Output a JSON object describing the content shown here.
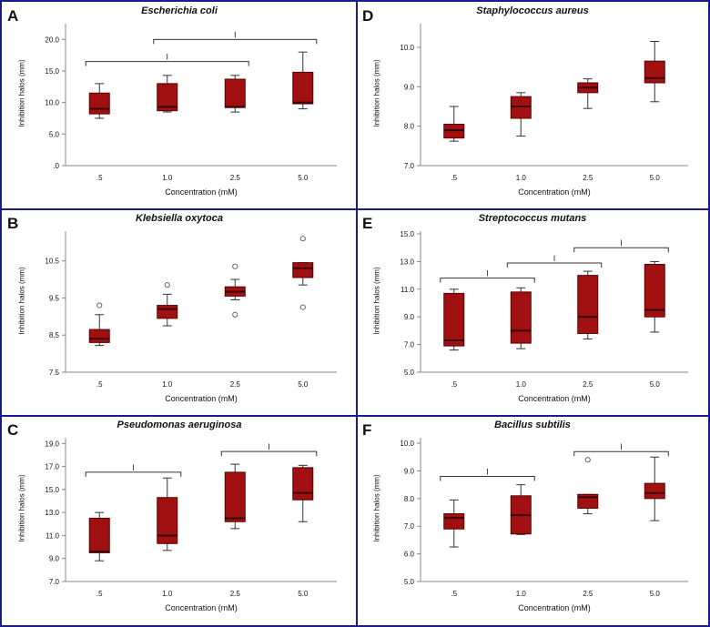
{
  "chart_data": [
    {
      "id": "A",
      "type": "box",
      "panel_letter": "A",
      "title": "Escherichia coli",
      "xlabel": "Concentration (mM)",
      "ylabel": "Inhibition halos (mm)",
      "categories": [
        ".5",
        "1.0",
        "2.5",
        "5.0"
      ],
      "ylim": [
        0,
        22.5
      ],
      "yticks": [
        0,
        5,
        10,
        15,
        20
      ],
      "yticklabels": [
        ".0",
        "5.0",
        "10.0",
        "15.0",
        "20.0"
      ],
      "boxes": [
        {
          "min": 7.5,
          "q1": 8.2,
          "median": 9.0,
          "q3": 11.5,
          "max": 13.0
        },
        {
          "min": 8.5,
          "q1": 8.7,
          "median": 9.3,
          "q3": 13.0,
          "max": 14.3
        },
        {
          "min": 8.5,
          "q1": 9.2,
          "median": 9.3,
          "q3": 13.7,
          "max": 14.3
        },
        {
          "min": 9.0,
          "q1": 9.8,
          "median": 10.0,
          "q3": 14.8,
          "max": 18.0
        }
      ],
      "outliers": [],
      "brackets": [
        {
          "from": 0,
          "to": 2,
          "y": 16.5,
          "label": "l"
        },
        {
          "from": 1,
          "to": 3,
          "y": 20.0,
          "label": "l"
        }
      ]
    },
    {
      "id": "D",
      "type": "box",
      "panel_letter": "D",
      "title": "Staphylococcus aureus",
      "xlabel": "Concentration (mM)",
      "ylabel": "Inhibition halos (mm)",
      "categories": [
        ".5",
        "1.0",
        "2.5",
        "5.0"
      ],
      "ylim": [
        7.0,
        10.6
      ],
      "yticks": [
        7,
        8,
        9,
        10
      ],
      "yticklabels": [
        "7.0",
        "8.0",
        "9.0",
        "10.0"
      ],
      "boxes": [
        {
          "min": 7.62,
          "q1": 7.7,
          "median": 7.9,
          "q3": 8.05,
          "max": 8.5
        },
        {
          "min": 7.75,
          "q1": 8.2,
          "median": 8.5,
          "q3": 8.75,
          "max": 8.85
        },
        {
          "min": 8.45,
          "q1": 8.85,
          "median": 8.98,
          "q3": 9.1,
          "max": 9.2
        },
        {
          "min": 8.62,
          "q1": 9.1,
          "median": 9.22,
          "q3": 9.65,
          "max": 10.15
        }
      ],
      "outliers": [],
      "brackets": []
    },
    {
      "id": "B",
      "type": "box",
      "panel_letter": "B",
      "title": "Klebsiella oxytoca",
      "xlabel": "Concentration (mM)",
      "ylabel": "Inhibition halos (mm)",
      "categories": [
        ".5",
        "1.0",
        "2.5",
        "5.0"
      ],
      "ylim": [
        7.5,
        11.3
      ],
      "yticks": [
        7.5,
        8.5,
        9.5,
        10.5
      ],
      "yticklabels": [
        "7.5",
        "8.5",
        "9.5",
        "10.5"
      ],
      "boxes": [
        {
          "min": 8.22,
          "q1": 8.3,
          "median": 8.4,
          "q3": 8.65,
          "max": 9.05
        },
        {
          "min": 8.75,
          "q1": 8.95,
          "median": 9.2,
          "q3": 9.3,
          "max": 9.6
        },
        {
          "min": 9.45,
          "q1": 9.55,
          "median": 9.67,
          "q3": 9.8,
          "max": 10.0
        },
        {
          "min": 9.85,
          "q1": 10.05,
          "median": 10.3,
          "q3": 10.45,
          "max": 10.45
        }
      ],
      "outliers": [
        {
          "category": 0,
          "value": 9.3
        },
        {
          "category": 1,
          "value": 9.85
        },
        {
          "category": 2,
          "value": 10.35
        },
        {
          "category": 2,
          "value": 9.05
        },
        {
          "category": 3,
          "value": 11.1
        },
        {
          "category": 3,
          "value": 9.25
        }
      ],
      "brackets": []
    },
    {
      "id": "E",
      "type": "box",
      "panel_letter": "E",
      "title": "Streptococcus mutans",
      "xlabel": "Concentration (mM)",
      "ylabel": "Inhibition halos (mm)",
      "categories": [
        ".5",
        "1.0",
        "2.5",
        "5.0"
      ],
      "ylim": [
        5.0,
        15.2
      ],
      "yticks": [
        5,
        7,
        9,
        11,
        13,
        15
      ],
      "yticklabels": [
        "5.0",
        "7.0",
        "9.0",
        "11.0",
        "13.0",
        "15.0"
      ],
      "boxes": [
        {
          "min": 6.6,
          "q1": 6.9,
          "median": 7.3,
          "q3": 10.7,
          "max": 11.0
        },
        {
          "min": 6.7,
          "q1": 7.1,
          "median": 8.0,
          "q3": 10.8,
          "max": 11.1
        },
        {
          "min": 7.4,
          "q1": 7.8,
          "median": 9.0,
          "q3": 12.0,
          "max": 12.3
        },
        {
          "min": 7.9,
          "q1": 9.0,
          "median": 9.5,
          "q3": 12.8,
          "max": 13.0
        }
      ],
      "outliers": [],
      "brackets": [
        {
          "from": 0,
          "to": 1,
          "y": 11.8,
          "label": "l"
        },
        {
          "from": 1,
          "to": 2,
          "y": 12.9,
          "label": "l"
        },
        {
          "from": 2,
          "to": 3,
          "y": 14.0,
          "label": "l"
        }
      ]
    },
    {
      "id": "C",
      "type": "box",
      "panel_letter": "C",
      "title": "Pseudomonas aeruginosa",
      "xlabel": "Concentration (mM)",
      "ylabel": "Inhibition halos (mm)",
      "categories": [
        ".5",
        "1.0",
        "2.5",
        "5.0"
      ],
      "ylim": [
        7.0,
        19.5
      ],
      "yticks": [
        7,
        9,
        11,
        13,
        15,
        17,
        19
      ],
      "yticklabels": [
        "7.0",
        "9.0",
        "11.0",
        "13.0",
        "15.0",
        "17.0",
        "19.0"
      ],
      "boxes": [
        {
          "min": 8.8,
          "q1": 9.5,
          "median": 9.6,
          "q3": 12.5,
          "max": 13.0
        },
        {
          "min": 9.7,
          "q1": 10.3,
          "median": 11.0,
          "q3": 14.3,
          "max": 16.0
        },
        {
          "min": 11.6,
          "q1": 12.2,
          "median": 12.5,
          "q3": 16.5,
          "max": 17.2
        },
        {
          "min": 12.2,
          "q1": 14.1,
          "median": 14.7,
          "q3": 16.9,
          "max": 17.1
        }
      ],
      "outliers": [],
      "brackets": [
        {
          "from": 0,
          "to": 1,
          "y": 16.5,
          "label": "l"
        },
        {
          "from": 2,
          "to": 3,
          "y": 18.3,
          "label": "l"
        }
      ]
    },
    {
      "id": "F",
      "type": "box",
      "panel_letter": "F",
      "title": "Bacillus subtilis",
      "xlabel": "Concentration (mM)",
      "ylabel": "Inhibition halos (mm)",
      "categories": [
        ".5",
        "1.0",
        "2.5",
        "5.0"
      ],
      "ylim": [
        5.0,
        10.2
      ],
      "yticks": [
        5,
        6,
        7,
        8,
        9,
        10
      ],
      "yticklabels": [
        "5.0",
        "6.0",
        "7.0",
        "8.0",
        "9.0",
        "10.0"
      ],
      "boxes": [
        {
          "min": 6.25,
          "q1": 6.9,
          "median": 7.3,
          "q3": 7.45,
          "max": 7.95
        },
        {
          "min": 6.7,
          "q1": 6.72,
          "median": 7.4,
          "q3": 8.1,
          "max": 8.5
        },
        {
          "min": 7.45,
          "q1": 7.65,
          "median": 8.05,
          "q3": 8.15,
          "max": 8.15
        },
        {
          "min": 7.2,
          "q1": 8.0,
          "median": 8.2,
          "q3": 8.55,
          "max": 9.5
        }
      ],
      "outliers": [
        {
          "category": 2,
          "value": 9.4
        }
      ],
      "brackets": [
        {
          "from": 0,
          "to": 1,
          "y": 8.8,
          "label": "l"
        },
        {
          "from": 2,
          "to": 3,
          "y": 9.7,
          "label": "l"
        }
      ]
    }
  ],
  "colors": {
    "box_fill": "#a01010",
    "box_stroke": "#5a0000",
    "frame": "#1a1a8c",
    "axis": "#888888",
    "text": "#111111"
  }
}
